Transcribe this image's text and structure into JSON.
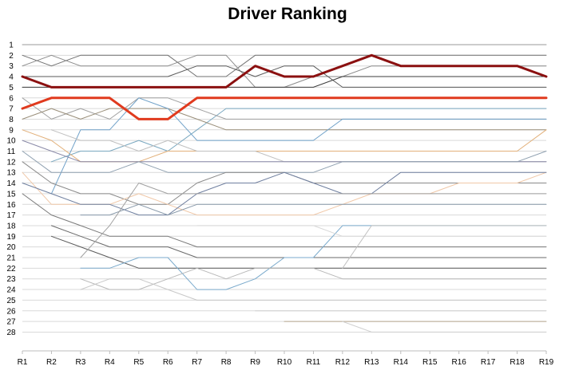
{
  "chart_data": {
    "type": "line",
    "title": "Driver Ranking",
    "xlabel": "",
    "ylabel": "",
    "x": [
      "R1",
      "R2",
      "R3",
      "R4",
      "R5",
      "R6",
      "R7",
      "R8",
      "R9",
      "R10",
      "R11",
      "R12",
      "R13",
      "R14",
      "R15",
      "R16",
      "R17",
      "R18",
      "R19"
    ],
    "y_ticks": [
      "1",
      "2",
      "3",
      "4",
      "5",
      "6",
      "7",
      "8",
      "9",
      "10",
      "11",
      "12",
      "13",
      "14",
      "15",
      "16",
      "17",
      "18",
      "19",
      "20",
      "21",
      "22",
      "23",
      "24",
      "25",
      "26",
      "27",
      "28"
    ],
    "ylim": [
      1,
      28
    ],
    "y_inverted": true,
    "grid": "horizontal",
    "legend": "none",
    "series": [
      {
        "color": "#9a9a9a",
        "width": 1,
        "values": [
          1,
          1,
          1,
          1,
          1,
          1,
          1,
          1,
          1,
          1,
          1,
          1,
          1,
          1,
          1,
          1,
          1,
          1,
          1
        ]
      },
      {
        "color": "#707070",
        "width": 1,
        "values": [
          2,
          3,
          2,
          2,
          2,
          2,
          4,
          4,
          2,
          2,
          2,
          2,
          2,
          2,
          2,
          2,
          2,
          2,
          2
        ]
      },
      {
        "color": "#8a8a8a",
        "width": 1,
        "values": [
          3,
          2,
          3,
          3,
          3,
          3,
          2,
          2,
          5,
          5,
          4,
          4,
          3,
          3,
          3,
          3,
          3,
          3,
          3
        ]
      },
      {
        "color": "#5a5a5a",
        "width": 1,
        "values": [
          4,
          4,
          4,
          4,
          4,
          4,
          3,
          3,
          4,
          3,
          3,
          5,
          5,
          5,
          5,
          5,
          5,
          5,
          5
        ]
      },
      {
        "color": "#3c3c3c",
        "width": 1,
        "values": [
          5,
          5,
          5,
          5,
          5,
          5,
          5,
          5,
          5,
          5,
          5,
          4,
          4,
          4,
          4,
          4,
          4,
          4,
          4
        ]
      },
      {
        "color": "#8b1010",
        "width": 3,
        "values": [
          4,
          5,
          5,
          5,
          5,
          5,
          5,
          5,
          3,
          4,
          4,
          3,
          2,
          3,
          3,
          3,
          3,
          3,
          4
        ]
      },
      {
        "color": "#e03a1e",
        "width": 3,
        "values": [
          7,
          6,
          6,
          6,
          8,
          8,
          6,
          6,
          6,
          6,
          6,
          6,
          6,
          6,
          6,
          6,
          6,
          6,
          6
        ]
      },
      {
        "color": "#7aa8c0",
        "width": 1,
        "values": [
          null,
          12,
          11,
          11,
          10,
          11,
          9,
          7,
          7,
          7,
          7,
          7,
          7,
          7,
          7,
          7,
          7,
          7,
          7
        ]
      },
      {
        "color": "#a0a0a0",
        "width": 1,
        "values": [
          6,
          8,
          7,
          8,
          6,
          6,
          7,
          8,
          8,
          8,
          8,
          8,
          8,
          8,
          8,
          8,
          8,
          8,
          8
        ]
      },
      {
        "color": "#9a8f7a",
        "width": 1,
        "values": [
          8,
          7,
          8,
          7,
          7,
          7,
          8,
          9,
          9,
          9,
          9,
          9,
          9,
          9,
          9,
          9,
          9,
          9,
          9
        ]
      },
      {
        "color": "#e2b07a",
        "width": 1,
        "values": [
          9,
          10,
          12,
          12,
          12,
          11,
          11,
          11,
          11,
          11,
          11,
          11,
          11,
          11,
          11,
          11,
          11,
          11,
          9
        ]
      },
      {
        "color": "#6ea0c8",
        "width": 1,
        "values": [
          null,
          15,
          9,
          9,
          6,
          7,
          10,
          10,
          10,
          10,
          10,
          8,
          8,
          8,
          8,
          8,
          8,
          8,
          8
        ]
      },
      {
        "color": "#c0c0c0",
        "width": 1,
        "values": [
          null,
          9,
          10,
          10,
          11,
          10,
          11,
          11,
          11,
          12,
          12,
          12,
          12,
          12,
          12,
          12,
          12,
          12,
          12
        ]
      },
      {
        "color": "#8a8aa8",
        "width": 1,
        "values": [
          10,
          11,
          12,
          12,
          12,
          12,
          12,
          12,
          12,
          12,
          12,
          12,
          12,
          12,
          12,
          12,
          12,
          12,
          12
        ]
      },
      {
        "color": "#8fa0b0",
        "width": 1,
        "values": [
          11,
          13,
          13,
          13,
          12,
          13,
          13,
          13,
          13,
          13,
          13,
          12,
          12,
          12,
          12,
          12,
          12,
          12,
          11
        ]
      },
      {
        "color": "#8a8a8a",
        "width": 1,
        "values": [
          12,
          14,
          15,
          15,
          16,
          16,
          14,
          13,
          13,
          13,
          14,
          14,
          14,
          14,
          14,
          14,
          14,
          14,
          14
        ]
      },
      {
        "color": "#f0c8a8",
        "width": 1,
        "values": [
          13,
          16,
          16,
          16,
          15,
          16,
          17,
          17,
          17,
          17,
          17,
          16,
          15,
          15,
          15,
          14,
          14,
          14,
          13
        ]
      },
      {
        "color": "#6f7f9f",
        "width": 1,
        "values": [
          14,
          15,
          16,
          16,
          17,
          17,
          15,
          14,
          14,
          13,
          14,
          15,
          15,
          13,
          13,
          13,
          13,
          13,
          13
        ]
      },
      {
        "color": "#8899aa",
        "width": 1,
        "values": [
          null,
          null,
          17,
          17,
          16,
          17,
          16,
          16,
          16,
          16,
          16,
          16,
          16,
          16,
          16,
          16,
          16,
          16,
          16
        ]
      },
      {
        "color": "#7a7a7a",
        "width": 1,
        "values": [
          15,
          17,
          18,
          19,
          19,
          19,
          20,
          20,
          20,
          20,
          20,
          20,
          20,
          20,
          20,
          20,
          20,
          20,
          20
        ]
      },
      {
        "color": "#6a6a6a",
        "width": 1,
        "values": [
          null,
          18,
          19,
          20,
          20,
          20,
          21,
          21,
          21,
          21,
          21,
          21,
          21,
          21,
          21,
          21,
          21,
          21,
          21
        ]
      },
      {
        "color": "#5a5a5a",
        "width": 1,
        "values": [
          null,
          19,
          20,
          21,
          22,
          22,
          22,
          22,
          22,
          22,
          22,
          22,
          22,
          22,
          22,
          22,
          22,
          22,
          22
        ]
      },
      {
        "color": "#a0a0a0",
        "width": 1,
        "values": [
          null,
          null,
          21,
          18,
          14,
          15,
          15,
          15,
          15,
          15,
          15,
          15,
          15,
          15,
          15,
          15,
          15,
          15,
          15
        ]
      },
      {
        "color": "#7aaacc",
        "width": 1,
        "values": [
          null,
          null,
          22,
          22,
          21,
          21,
          24,
          24,
          23,
          21,
          21,
          18,
          18,
          18,
          18,
          18,
          18,
          18,
          18
        ]
      },
      {
        "color": "#b8b8b8",
        "width": 1,
        "values": [
          null,
          null,
          23,
          24,
          24,
          23,
          22,
          23,
          22,
          22,
          22,
          23,
          23,
          23,
          23,
          23,
          23,
          23,
          23
        ]
      },
      {
        "color": "#c8c8c8",
        "width": 1,
        "values": [
          null,
          null,
          24,
          23,
          23,
          24,
          25,
          25,
          25,
          25,
          25,
          25,
          25,
          25,
          25,
          25,
          25,
          25,
          25
        ]
      },
      {
        "color": "#b8a890",
        "width": 1,
        "values": [
          null,
          null,
          null,
          null,
          null,
          null,
          null,
          null,
          null,
          27,
          27,
          27,
          27,
          27,
          27,
          27,
          27,
          27,
          27
        ]
      },
      {
        "color": "#d0d0d0",
        "width": 1,
        "values": [
          null,
          null,
          null,
          null,
          null,
          null,
          null,
          null,
          26,
          26,
          26,
          26,
          26,
          26,
          26,
          26,
          26,
          26,
          26
        ]
      },
      {
        "color": "#d8d8d8",
        "width": 1,
        "values": [
          null,
          null,
          null,
          null,
          null,
          null,
          18,
          18,
          18,
          18,
          18,
          19,
          19,
          19,
          19,
          19,
          19,
          19,
          19
        ]
      },
      {
        "color": "#c0c0c0",
        "width": 1,
        "values": [
          null,
          null,
          null,
          null,
          null,
          null,
          null,
          null,
          null,
          null,
          null,
          22,
          18,
          18,
          18,
          18,
          18,
          18,
          18
        ]
      },
      {
        "color": "#d0d0d0",
        "width": 1,
        "values": [
          null,
          null,
          null,
          null,
          null,
          null,
          null,
          null,
          null,
          null,
          null,
          27,
          28,
          28,
          28,
          28,
          28,
          28,
          28
        ]
      }
    ]
  }
}
